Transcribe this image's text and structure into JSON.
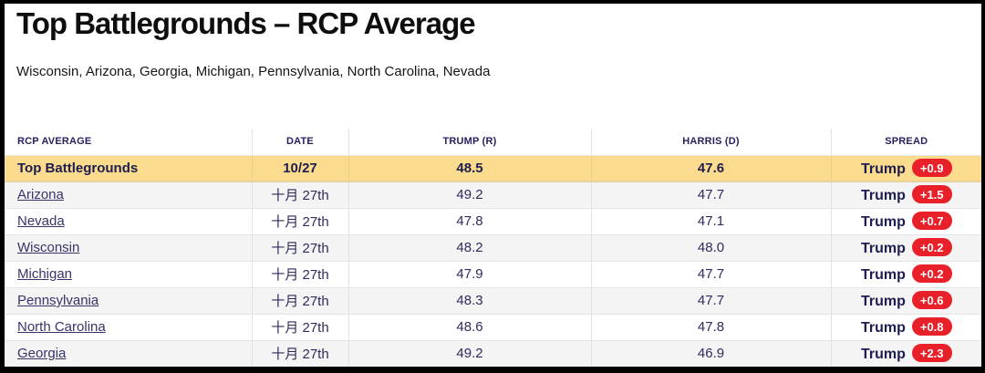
{
  "page": {
    "title": "Top Battlegrounds – RCP Average",
    "subtitle": "Wisconsin, Arizona, Georgia, Michigan, Pennsylvania, North Carolina, Nevada"
  },
  "table": {
    "columns": [
      "RCP AVERAGE",
      "DATE",
      "TRUMP (R)",
      "HARRIS (D)",
      "SPREAD"
    ],
    "summary_row": {
      "label": "Top Battlegrounds",
      "date": "10/27",
      "trump": "48.5",
      "harris": "47.6",
      "spread_party": "Trump",
      "spread_value": "+0.9"
    },
    "rows": [
      {
        "state": "Arizona",
        "date": "十月 27th",
        "trump": "49.2",
        "harris": "47.7",
        "spread_party": "Trump",
        "spread_value": "+1.5"
      },
      {
        "state": "Nevada",
        "date": "十月 27th",
        "trump": "47.8",
        "harris": "47.1",
        "spread_party": "Trump",
        "spread_value": "+0.7"
      },
      {
        "state": "Wisconsin",
        "date": "十月 27th",
        "trump": "48.2",
        "harris": "48.0",
        "spread_party": "Trump",
        "spread_value": "+0.2"
      },
      {
        "state": "Michigan",
        "date": "十月 27th",
        "trump": "47.9",
        "harris": "47.7",
        "spread_party": "Trump",
        "spread_value": "+0.2"
      },
      {
        "state": "Pennsylvania",
        "date": "十月 27th",
        "trump": "48.3",
        "harris": "47.7",
        "spread_party": "Trump",
        "spread_value": "+0.6"
      },
      {
        "state": "North Carolina",
        "date": "十月 27th",
        "trump": "48.6",
        "harris": "47.8",
        "spread_party": "Trump",
        "spread_value": "+0.8"
      },
      {
        "state": "Georgia",
        "date": "十月 27th",
        "trump": "49.2",
        "harris": "46.9",
        "spread_party": "Trump",
        "spread_value": "+2.3"
      }
    ]
  },
  "colors": {
    "highlight_yellow": "#fbdb8d",
    "spread_badge_red": "#e8202a",
    "header_navy": "#262262",
    "link_navy": "#35356b",
    "alt_row_gray": "#f4f4f4",
    "frame_black": "#000000"
  }
}
